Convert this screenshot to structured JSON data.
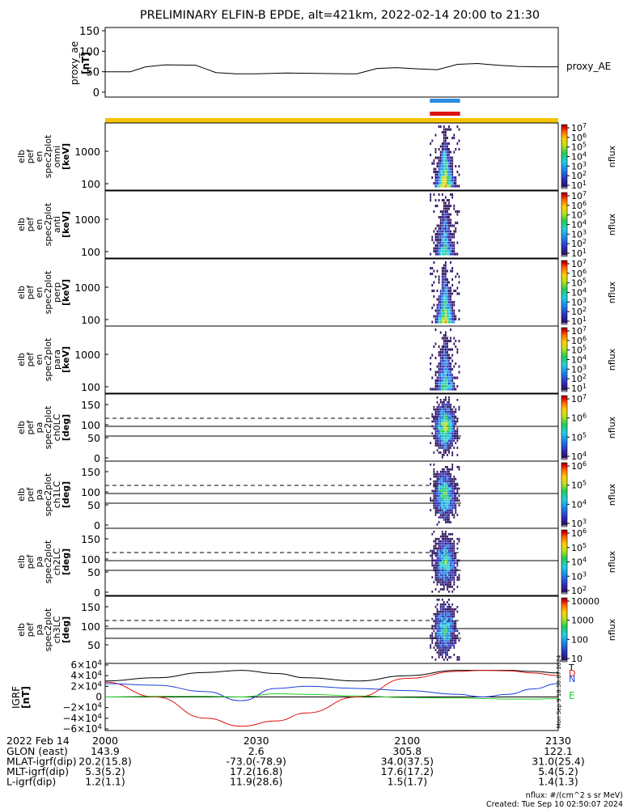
{
  "title": "PRELIMINARY ELFIN-B EPDE, alt=421km, 2022-02-14 20:00 to 21:30",
  "colors": {
    "sci_zone_top": "#2a8ce0",
    "sci_zone_bottom": "#dd1111",
    "orbit_bar": "#f5c400",
    "orbit_bar_edge": "#dd1111",
    "x_component": "#dd1111",
    "y_component": "#1a3fd8",
    "z_component": "#22cc22",
    "total_field": "#000000"
  },
  "proxy_ae": {
    "ylabel": [
      "proxy_ae",
      "[nT]"
    ],
    "legend": "proxy_AE",
    "yticks": [
      "150",
      "100",
      "50",
      "0"
    ]
  },
  "panels": [
    {
      "ylabel": [
        "elb",
        "pef",
        "en",
        "spec2plot",
        "omni",
        "[keV]"
      ],
      "yticks": [
        "1000",
        "100"
      ],
      "zlabel": "nflux",
      "zticks": [
        "10^7",
        "10^6",
        "10^5",
        "10^4",
        "10^3",
        "10^2",
        "10^1"
      ]
    },
    {
      "ylabel": [
        "elb",
        "pef",
        "en",
        "spec2plot",
        "anti",
        "[keV]"
      ],
      "yticks": [
        "1000",
        "100"
      ],
      "zlabel": "nflux",
      "zticks": [
        "10^7",
        "10^6",
        "10^5",
        "10^4",
        "10^3",
        "10^2",
        "10^1"
      ]
    },
    {
      "ylabel": [
        "elb",
        "pef",
        "en",
        "spec2plot",
        "perp",
        "[keV]"
      ],
      "yticks": [
        "1000",
        "100"
      ],
      "zlabel": "nflux",
      "zticks": [
        "10^7",
        "10^6",
        "10^5",
        "10^4",
        "10^3",
        "10^2",
        "10^1"
      ]
    },
    {
      "ylabel": [
        "elb",
        "pef",
        "en",
        "spec2plot",
        "para",
        "[keV]"
      ],
      "yticks": [
        "1000",
        "100"
      ],
      "zlabel": "nflux",
      "zticks": [
        "10^7",
        "10^6",
        "10^5",
        "10^4",
        "10^3",
        "10^2",
        "10^1"
      ]
    },
    {
      "ylabel": [
        "elb",
        "pef",
        "pa",
        "spec2plot",
        "ch0LC",
        "[deg]"
      ],
      "yticks": [
        "150",
        "100",
        "50",
        "0"
      ],
      "zlabel": "nflux",
      "zticks": [
        "10^7",
        "10^6",
        "10^5",
        "10^4"
      ]
    },
    {
      "ylabel": [
        "elb",
        "pef",
        "pa",
        "spec2plot",
        "ch1LC",
        "[deg]"
      ],
      "yticks": [
        "150",
        "100",
        "50",
        "0"
      ],
      "zlabel": "nflux",
      "zticks": [
        "10^6",
        "10^5",
        "10^4",
        "10^3"
      ]
    },
    {
      "ylabel": [
        "elb",
        "pef",
        "pa",
        "spec2plot",
        "ch2LC",
        "[deg]"
      ],
      "yticks": [
        "150",
        "100",
        "50",
        "0"
      ],
      "zlabel": "nflux",
      "zticks": [
        "10^6",
        "10^5",
        "10^4",
        "10^3",
        "10^2"
      ]
    },
    {
      "ylabel": [
        "elb",
        "pef",
        "pa",
        "spec2plot",
        "ch3LC",
        "[deg]"
      ],
      "yticks": [
        "150",
        "100",
        "50"
      ],
      "zlabel": "nflux",
      "zticks": [
        "10000",
        "1000",
        "100",
        "10"
      ]
    }
  ],
  "bfield": {
    "ylabel": [
      "IGRF",
      "[nT]"
    ],
    "yticks": [
      "6×10^4",
      "4×10^4",
      "2×10^4",
      "0",
      "−2×10^4",
      "−4×10^4",
      "−6×10^4"
    ],
    "side_legend": [
      "T",
      "D",
      "N",
      "E"
    ],
    "timestamp": "Mon Sep 9 18:50:07 2024"
  },
  "footer": {
    "date": "2022 Feb 14",
    "rows": [
      {
        "label": "GLON (east)",
        "values": [
          "143.9",
          "2.6",
          "305.8",
          "122.1"
        ]
      },
      {
        "label": "MLAT-igrf(dip)",
        "values": [
          "20.2(15.8)",
          "-73.0(-78.9)",
          "34.0(37.5)",
          "31.0(25.4)"
        ]
      },
      {
        "label": "MLT-igrf(dip)",
        "values": [
          "5.3(5.2)",
          "17.2(16.8)",
          "17.6(17.2)",
          "5.4(5.2)"
        ]
      },
      {
        "label": "L-igrf(dip)",
        "values": [
          "1.2(1.1)",
          "11.9(28.6)",
          "1.5(1.7)",
          "1.4(1.3)"
        ]
      }
    ],
    "time_labels": [
      "2000",
      "2030",
      "2100",
      "2130"
    ],
    "units": "nflux: #/(cm^2 s sr MeV)",
    "created": "Created: Tue Sep 10 02:50:07 2024"
  },
  "chart_data": [
    {
      "type": "line",
      "name": "proxy_ae",
      "x_start": "2022-02-14 20:00",
      "x_end": "2022-02-14 21:30",
      "x": [
        0,
        5,
        8,
        12,
        18,
        22,
        26,
        30,
        36,
        42,
        48,
        50,
        54,
        58,
        62,
        66,
        70,
        74,
        78,
        82,
        86,
        90
      ],
      "values": [
        50,
        50,
        62,
        67,
        66,
        48,
        45,
        45,
        47,
        46,
        45,
        45,
        58,
        60,
        57,
        55,
        68,
        70,
        66,
        63,
        62,
        62
      ],
      "ylim": [
        0,
        150
      ]
    },
    {
      "type": "heatmap",
      "panels": [
        "omni",
        "anti",
        "perp",
        "para",
        "ch0LC",
        "ch1LC",
        "ch2LC",
        "ch3LC"
      ],
      "activity_window": [
        "21:04",
        "21:11"
      ],
      "peak_time": "21:07",
      "energy_range_keV": [
        60,
        2000
      ],
      "pitch_angle_range_deg": [
        0,
        180
      ],
      "loss_cone_lines_deg": [
        115,
        90,
        65
      ]
    },
    {
      "type": "line",
      "name": "IGRF",
      "x": [
        0,
        10,
        20,
        27,
        34,
        40,
        50,
        60,
        70,
        75,
        80,
        85,
        90
      ],
      "series": [
        {
          "name": "T",
          "values": [
            30000,
            36000,
            46000,
            50000,
            44000,
            36000,
            30000,
            40000,
            50000,
            50000,
            50000,
            48000,
            45000
          ]
        },
        {
          "name": "D",
          "values": [
            28000,
            0,
            -40000,
            -55000,
            -45000,
            -30000,
            0,
            35000,
            48000,
            50000,
            49000,
            45000,
            40000
          ]
        },
        {
          "name": "N",
          "values": [
            25000,
            22000,
            10000,
            -7000,
            16000,
            20000,
            16000,
            12000,
            5000,
            0,
            5000,
            15000,
            25000
          ]
        },
        {
          "name": "E",
          "values": [
            0,
            1000,
            1000,
            0,
            6000,
            5000,
            2000,
            -1000,
            -2000,
            -3000,
            -4000,
            -4000,
            -3000
          ]
        }
      ],
      "ylim": [
        -60000,
        60000
      ]
    }
  ]
}
